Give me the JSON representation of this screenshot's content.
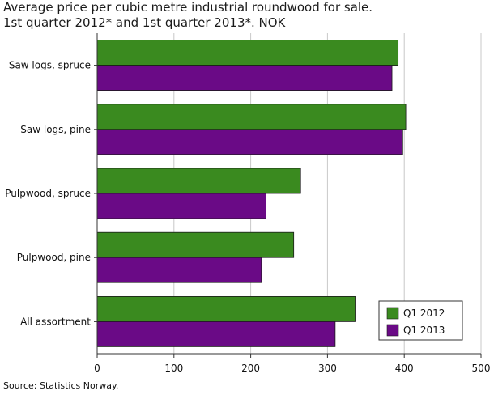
{
  "title_line1": "Average price per cubic metre industrial roundwood for sale.",
  "title_line2": "1st quarter 2012* and 1st quarter 2013*. NOK",
  "source": "Source: Statistics Norway.",
  "colors": {
    "q1_2012": "#3a8a1f",
    "q1_2013": "#6a0a86",
    "grid": "#c8c8c8",
    "axis": "#333333"
  },
  "chart_data": {
    "type": "bar",
    "orientation": "horizontal",
    "categories": [
      "Saw logs, spruce",
      "Saw logs, pine",
      "Pulpwood, spruce",
      "Pulpwood, pine",
      "All assortment"
    ],
    "series": [
      {
        "name": "Q1 2012",
        "values": [
          392,
          402,
          265,
          256,
          336
        ]
      },
      {
        "name": "Q1 2013",
        "values": [
          384,
          398,
          220,
          214,
          310
        ]
      }
    ],
    "xlim": [
      0,
      500
    ],
    "xticks": [
      0,
      100,
      200,
      300,
      400,
      500
    ],
    "grid": true,
    "legend_position": "bottom-right"
  }
}
